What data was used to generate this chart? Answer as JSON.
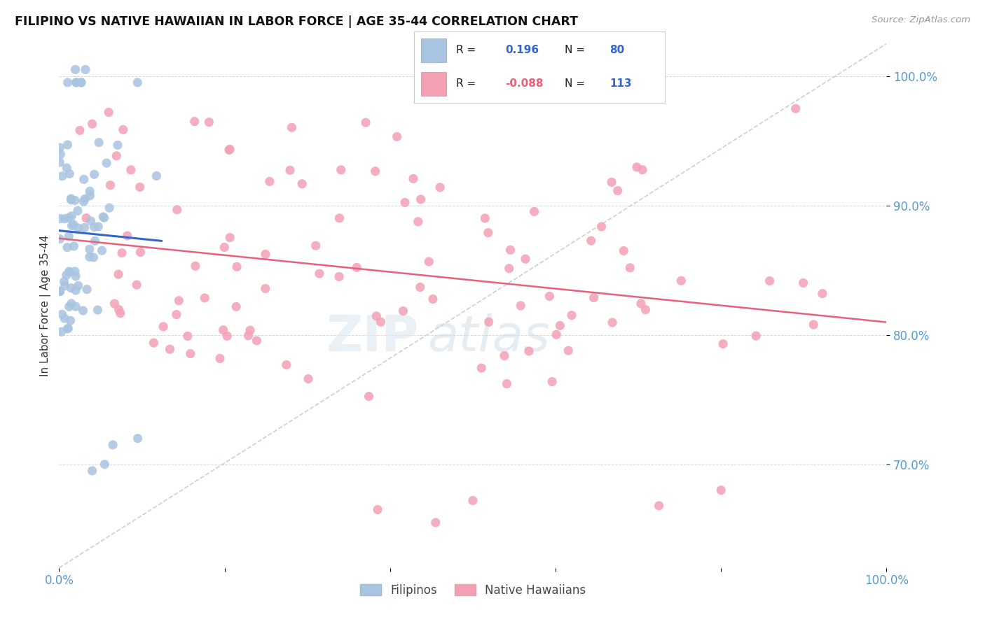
{
  "title": "FILIPINO VS NATIVE HAWAIIAN IN LABOR FORCE | AGE 35-44 CORRELATION CHART",
  "source": "Source: ZipAtlas.com",
  "ylabel": "In Labor Force | Age 35-44",
  "xlim": [
    0.0,
    1.0
  ],
  "ylim": [
    0.62,
    1.025
  ],
  "yticks": [
    0.7,
    0.8,
    0.9,
    1.0
  ],
  "ytick_labels": [
    "70.0%",
    "80.0%",
    "90.0%",
    "100.0%"
  ],
  "filipino_color": "#a8c4e0",
  "hawaiian_color": "#f4a0b4",
  "filipino_line_color": "#3366cc",
  "hawaiian_line_color": "#e8607a",
  "diagonal_color": "#c0ccd8",
  "R_filipino": 0.196,
  "N_filipino": 80,
  "R_hawaiian": -0.088,
  "N_hawaiian": 113,
  "legend_text_color": "#333333",
  "legend_value_color": "#3366cc",
  "legend_neg_color": "#e8607a",
  "watermark_color": "#dce8f0",
  "background_color": "#ffffff",
  "grid_color": "#c8d8e4",
  "tick_color": "#5599cc",
  "ylabel_color": "#333333"
}
